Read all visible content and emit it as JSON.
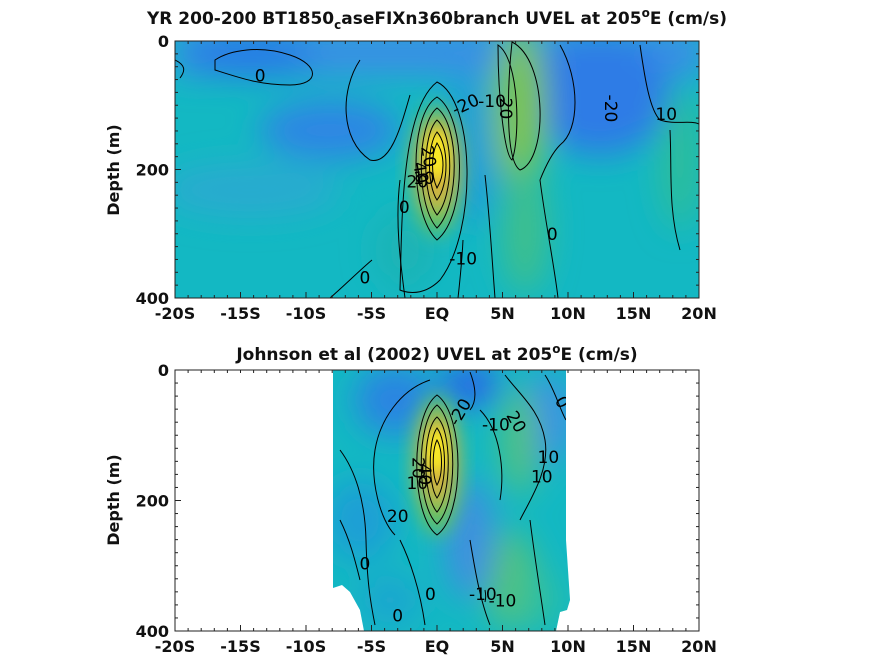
{
  "chart_data": [
    {
      "type": "heatmap",
      "title": {
        "prefix": "YR 200-200 BT1850",
        "subscript": "c",
        "middle": "aseFIXn360branch UVEL at 205",
        "superscript": "o",
        "suffix": "E (cm/s)"
      },
      "xlabel": "",
      "ylabel": "Depth (m)",
      "xlim": [
        -20,
        20
      ],
      "ylim": [
        0,
        400
      ],
      "y_reversed": true,
      "x_ticks": [
        -20,
        -15,
        -10,
        -5,
        0,
        5,
        10,
        15,
        20
      ],
      "x_tick_labels": [
        "-20S",
        "-15S",
        "-10S",
        "-5S",
        "EQ",
        "5N",
        "10N",
        "15N",
        "20N"
      ],
      "y_ticks": [
        0,
        200,
        400
      ],
      "y_tick_labels": [
        "0",
        "200",
        "400"
      ],
      "data_extent": [
        -20,
        20
      ],
      "contour_labels": [
        {
          "text": "0",
          "x": -13.5,
          "y": 55,
          "rot": 0
        },
        {
          "text": "-20",
          "x": 2.2,
          "y": 100,
          "rot": -25
        },
        {
          "text": "-10",
          "x": 4.2,
          "y": 95,
          "rot": 0
        },
        {
          "text": "20",
          "x": 5.2,
          "y": 105,
          "rot": 90
        },
        {
          "text": "-20",
          "x": 13.2,
          "y": 105,
          "rot": 90
        },
        {
          "text": "10",
          "x": 17.5,
          "y": 115,
          "rot": 0
        },
        {
          "text": "20",
          "x": -0.7,
          "y": 180,
          "rot": 80
        },
        {
          "text": "40",
          "x": -1.3,
          "y": 205,
          "rot": 80
        },
        {
          "text": "10",
          "x": -1.0,
          "y": 215,
          "rot": 0
        },
        {
          "text": "20",
          "x": -1.5,
          "y": 220,
          "rot": 0
        },
        {
          "text": "0",
          "x": -2.5,
          "y": 260,
          "rot": 0
        },
        {
          "text": "0",
          "x": 8.8,
          "y": 302,
          "rot": 0
        },
        {
          "text": "-10",
          "x": 2.0,
          "y": 340,
          "rot": 0
        },
        {
          "text": "0",
          "x": -5.5,
          "y": 370,
          "rot": 0
        }
      ]
    },
    {
      "type": "heatmap",
      "title": {
        "prefix": "Johnson et al (2002) UVEL at 205",
        "superscript": "o",
        "suffix": "E (cm/s)"
      },
      "xlabel": "",
      "ylabel": "Depth (m)",
      "xlim": [
        -20,
        20
      ],
      "ylim": [
        0,
        400
      ],
      "y_reversed": true,
      "x_ticks": [
        -20,
        -15,
        -10,
        -5,
        0,
        5,
        10,
        15,
        20
      ],
      "x_tick_labels": [
        "-20S",
        "-15S",
        "-10S",
        "-5S",
        "EQ",
        "5N",
        "10N",
        "15N",
        "20N"
      ],
      "y_ticks": [
        0,
        200,
        400
      ],
      "y_tick_labels": [
        "0",
        "200",
        "400"
      ],
      "data_extent": [
        -8,
        10
      ],
      "contour_labels": [
        {
          "text": "-20",
          "x": 1.8,
          "y": 65,
          "rot": -60
        },
        {
          "text": "20",
          "x": 6.0,
          "y": 80,
          "rot": 60
        },
        {
          "text": "0",
          "x": 9.5,
          "y": 50,
          "rot": 60
        },
        {
          "text": "-10",
          "x": 4.5,
          "y": 85,
          "rot": 0
        },
        {
          "text": "10",
          "x": 8.5,
          "y": 135,
          "rot": 0
        },
        {
          "text": "10",
          "x": 8.0,
          "y": 165,
          "rot": 0
        },
        {
          "text": "20",
          "x": -1.5,
          "y": 150,
          "rot": 90
        },
        {
          "text": "40",
          "x": -1.0,
          "y": 160,
          "rot": 90
        },
        {
          "text": "10",
          "x": -1.5,
          "y": 175,
          "rot": 0
        },
        {
          "text": "20",
          "x": -3.0,
          "y": 225,
          "rot": 0
        },
        {
          "text": "0",
          "x": -5.5,
          "y": 298,
          "rot": 0
        },
        {
          "text": "0",
          "x": -0.5,
          "y": 345,
          "rot": 0
        },
        {
          "text": "-10",
          "x": 5.0,
          "y": 355,
          "rot": 0
        },
        {
          "text": "-10",
          "x": 3.5,
          "y": 345,
          "rot": 0
        },
        {
          "text": "0",
          "x": -3.0,
          "y": 378,
          "rot": 0
        }
      ]
    }
  ],
  "colors": {
    "strong_westward": "#2f6fe6",
    "westward": "#3f8fe6",
    "background": "#13b8c3",
    "weak_eastward": "#33c08c",
    "eastward": "#8cc63c",
    "strong_eastward": "#e6b530",
    "max_eastward": "#f9ed1a",
    "contour": "#000000"
  }
}
